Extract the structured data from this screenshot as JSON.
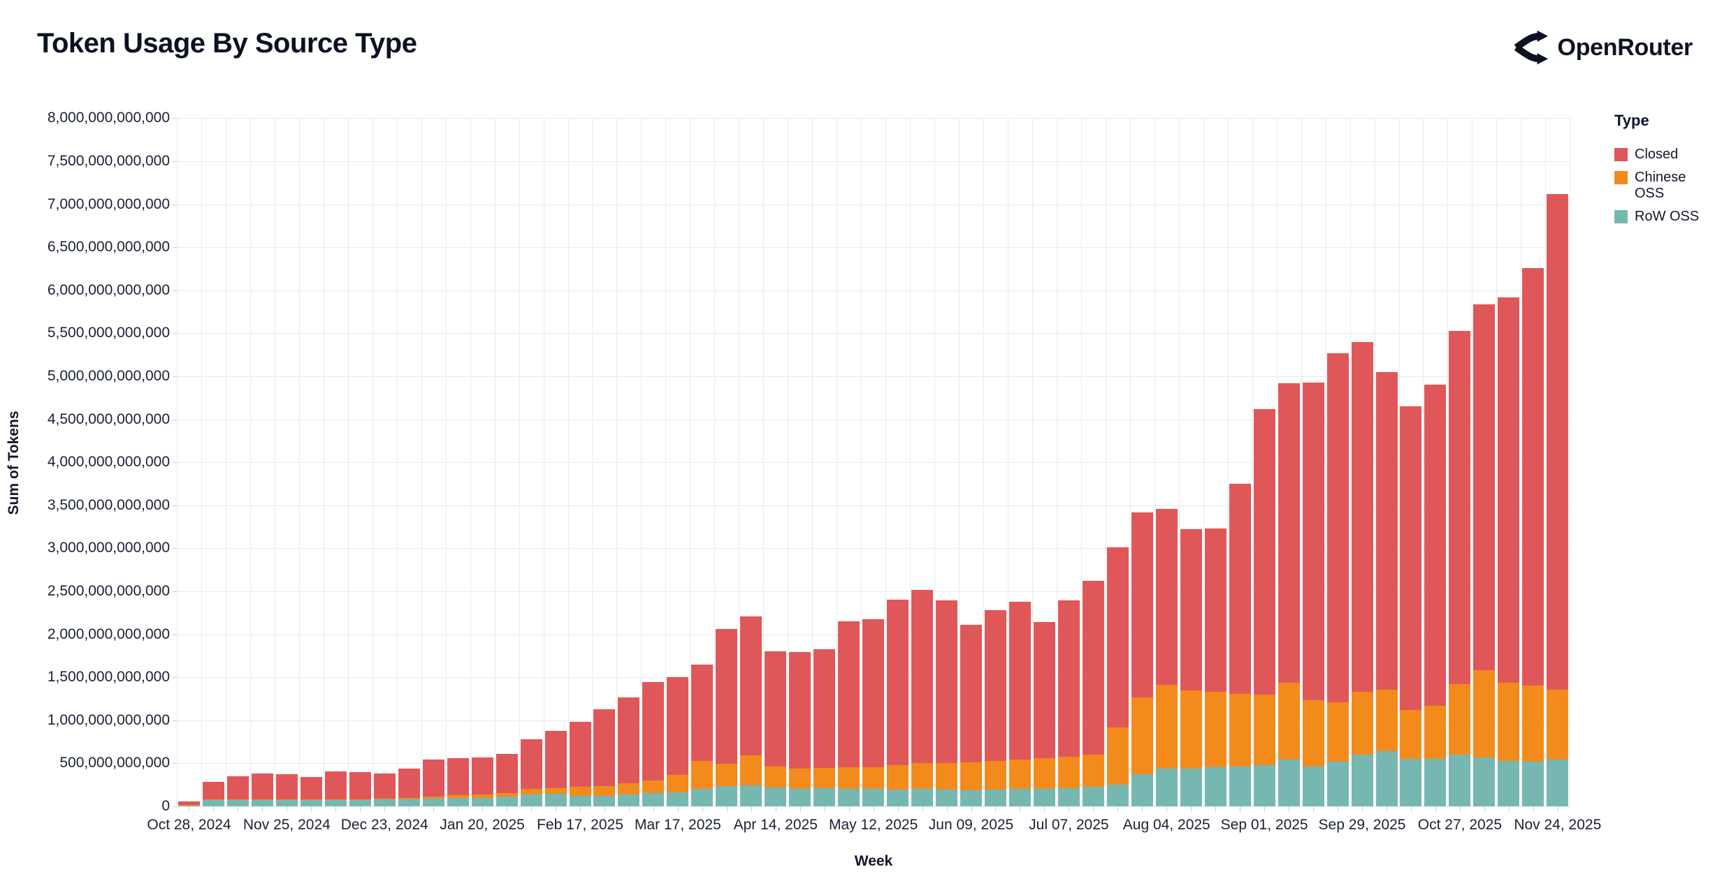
{
  "page": {
    "title": "Token Usage By Source Type",
    "brand": "OpenRouter"
  },
  "chart_data": {
    "type": "bar",
    "stacked": true,
    "title": "Token Usage By Source Type",
    "xlabel": "Week",
    "ylabel": "Sum of Tokens",
    "values_unit": "billions of tokens",
    "ylim_billions": [
      0,
      8000
    ],
    "y_tick_step_billions": 500,
    "grid": true,
    "legend": {
      "title": "Type",
      "position": "right"
    },
    "y_tick_labels": [
      "0",
      "500,000,000,000",
      "1,000,000,000,000",
      "1,500,000,000,000",
      "2,000,000,000,000",
      "2,500,000,000,000",
      "3,000,000,000,000",
      "3,500,000,000,000",
      "4,000,000,000,000",
      "4,500,000,000,000",
      "5,000,000,000,000",
      "5,500,000,000,000",
      "6,000,000,000,000",
      "6,500,000,000,000",
      "7,000,000,000,000",
      "7,500,000,000,000",
      "8,000,000,000,000"
    ],
    "x_tick_every_n_weeks": 4,
    "x_tick_labels": [
      "Oct 28, 2024",
      "Nov 25, 2024",
      "Dec 23, 2024",
      "Jan 20, 2025",
      "Feb 17, 2025",
      "Mar 17, 2025",
      "Apr 14, 2025",
      "May 12, 2025",
      "Jun 09, 2025",
      "Jul 07, 2025",
      "Aug 04, 2025",
      "Sep 01, 2025",
      "Sep 29, 2025",
      "Oct 27, 2025",
      "Nov 24, 2025"
    ],
    "categories": [
      "Oct 28, 2024",
      "Nov 04, 2024",
      "Nov 11, 2024",
      "Nov 18, 2024",
      "Nov 25, 2024",
      "Dec 02, 2024",
      "Dec 09, 2024",
      "Dec 16, 2024",
      "Dec 23, 2024",
      "Dec 30, 2024",
      "Jan 06, 2025",
      "Jan 13, 2025",
      "Jan 20, 2025",
      "Jan 27, 2025",
      "Feb 03, 2025",
      "Feb 10, 2025",
      "Feb 17, 2025",
      "Feb 24, 2025",
      "Mar 03, 2025",
      "Mar 10, 2025",
      "Mar 17, 2025",
      "Mar 24, 2025",
      "Mar 31, 2025",
      "Apr 07, 2025",
      "Apr 14, 2025",
      "Apr 21, 2025",
      "Apr 28, 2025",
      "May 05, 2025",
      "May 12, 2025",
      "May 19, 2025",
      "May 26, 2025",
      "Jun 02, 2025",
      "Jun 09, 2025",
      "Jun 16, 2025",
      "Jun 23, 2025",
      "Jun 30, 2025",
      "Jul 07, 2025",
      "Jul 14, 2025",
      "Jul 21, 2025",
      "Jul 28, 2025",
      "Aug 04, 2025",
      "Aug 11, 2025",
      "Aug 18, 2025",
      "Aug 25, 2025",
      "Sep 01, 2025",
      "Sep 08, 2025",
      "Sep 15, 2025",
      "Sep 22, 2025",
      "Sep 29, 2025",
      "Oct 06, 2025",
      "Oct 13, 2025",
      "Oct 20, 2025",
      "Oct 27, 2025",
      "Nov 03, 2025",
      "Nov 10, 2025",
      "Nov 17, 2025",
      "Nov 24, 2025"
    ],
    "stack_order_bottom_to_top": [
      "RoW OSS",
      "Chinese OSS",
      "Closed"
    ],
    "series": [
      {
        "name": "Closed",
        "color": "#e05759",
        "values": [
          41,
          202,
          267,
          298,
          288,
          265,
          321,
          315,
          295,
          337,
          425,
          433,
          427,
          447,
          580,
          662,
          760,
          895,
          1000,
          1145,
          1135,
          1125,
          1565,
          1620,
          1340,
          1350,
          1380,
          1695,
          1720,
          1925,
          2020,
          1890,
          1600,
          1755,
          1835,
          1580,
          1820,
          2020,
          2100,
          2150,
          2045,
          1880,
          1895,
          2440,
          3320,
          3485,
          3700,
          4055,
          4060,
          3690,
          3535,
          3730,
          4110,
          4255,
          4485,
          4855,
          5760
        ]
      },
      {
        "name": "Chinese OSS",
        "color": "#f28b1c",
        "values": [
          2,
          5,
          6,
          8,
          8,
          8,
          10,
          10,
          12,
          16,
          25,
          32,
          38,
          48,
          60,
          68,
          105,
          110,
          130,
          145,
          200,
          320,
          260,
          350,
          240,
          235,
          240,
          250,
          255,
          280,
          300,
          310,
          320,
          330,
          345,
          355,
          360,
          370,
          660,
          900,
          975,
          905,
          880,
          845,
          820,
          890,
          770,
          690,
          735,
          710,
          570,
          615,
          820,
          1010,
          910,
          885,
          810
        ]
      },
      {
        "name": "RoW OSS",
        "color": "#76b7b2",
        "values": [
          12,
          78,
          72,
          74,
          74,
          72,
          74,
          75,
          78,
          82,
          90,
          95,
          100,
          110,
          140,
          145,
          120,
          125,
          135,
          155,
          165,
          205,
          235,
          240,
          220,
          205,
          210,
          205,
          200,
          195,
          200,
          195,
          190,
          195,
          200,
          205,
          215,
          230,
          255,
          370,
          435,
          440,
          455,
          465,
          480,
          545,
          460,
          520,
          600,
          645,
          550,
          555,
          600,
          570,
          525,
          520,
          545
        ]
      }
    ]
  },
  "layout_colors": {
    "grid": "#e9e9f2",
    "tick": "#c9c9d6",
    "text_dark": "#12182b",
    "brand_ink": "#0c1222"
  }
}
